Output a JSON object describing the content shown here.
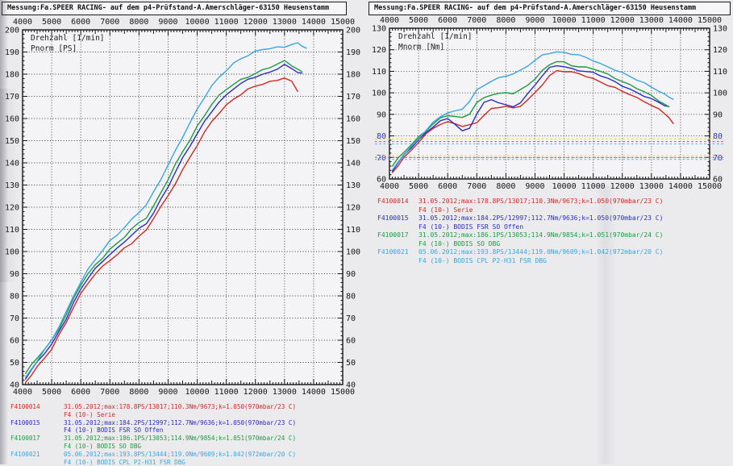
{
  "page": {
    "title": "Messung:Fa.SPEER RACING- auf dem p4-Prüfstand-A.Amerschläger-63150 Heusenstamm"
  },
  "colors": {
    "red": "#d22820",
    "blue": "#2a2cc8",
    "green": "#1e9a42",
    "cyan": "#38a6e0",
    "ref_yellow": "#e6de2e",
    "ref_magenta": "#e23cc8",
    "ref_cyan": "#46c4e8",
    "axis": "#151515",
    "grid": "#3c3c3c",
    "blue_label": "#2a35c8"
  },
  "legend": [
    {
      "id": "F4100014",
      "color": "red",
      "info": "31.05.2012;max:178.8PS/13017;110.3Nm/9673;k=1.050(970mbar/23 C)",
      "name": "F4 (10-) Serie"
    },
    {
      "id": "F4100015",
      "color": "blue",
      "info": "31.05.2012;max:184.2PS/12997;112.7Nm/9636;k=1.050(970mbar/23 C)",
      "name": "F4 (10-) BODIS FSR SO Offen"
    },
    {
      "id": "F4100017",
      "color": "green",
      "info": "31.05.2012;max:186.1PS/13053;114.9Nm/9854;k=1.051(970mbar/24 C)",
      "name": "F4 (10-) BODIS SO DBG"
    },
    {
      "id": "F4100021",
      "color": "cyan",
      "info": "05.06.2012;max:193.8PS/13444;119.0Nm/9609;k=1.042(972mbar/20 C)",
      "name": "F4 (10-) BODIS CPL P2-H31 FSR DBG"
    }
  ],
  "chart_data": [
    {
      "type": "line",
      "name": "power",
      "inplot_labels": [
        "Drehzahl [1/min]",
        "Pnorm [PS]"
      ],
      "xlabel": "Drehzahl [1/min]",
      "ylabel": "Pnorm [PS]",
      "xlim": [
        4000,
        15000
      ],
      "ylim": [
        40,
        200
      ],
      "x_major": 1000,
      "x_minor": 100,
      "y_major": 10,
      "y_minor": 2,
      "grid": "dotted",
      "x": [
        4100,
        4300,
        4500,
        4750,
        5000,
        5250,
        5500,
        5750,
        6000,
        6250,
        6500,
        6750,
        7000,
        7250,
        7500,
        7750,
        8000,
        8250,
        8500,
        8750,
        9000,
        9250,
        9500,
        9750,
        10000,
        10250,
        10500,
        10750,
        11000,
        11250,
        11500,
        11750,
        12000,
        12250,
        12500,
        12750,
        13000,
        13250,
        13450,
        13600,
        13750
      ],
      "series": [
        {
          "id": "F4100014",
          "color": "red",
          "max_label": "178.8PS/13017",
          "values": [
            41,
            44.5,
            48,
            52,
            56,
            62,
            68,
            75,
            81,
            86,
            90,
            93,
            96,
            98.5,
            101.5,
            104,
            107,
            109.5,
            115,
            120,
            125,
            131,
            137,
            142.5,
            148,
            153.5,
            158.5,
            162.5,
            166,
            169,
            171,
            173,
            174.5,
            175.5,
            176.5,
            177.5,
            178.6,
            176.5,
            172.3,
            null,
            null
          ]
        },
        {
          "id": "F4100015",
          "color": "blue",
          "max_label": "184.2PS/12997",
          "values": [
            43,
            46.5,
            50,
            54,
            58,
            64,
            70,
            77,
            83,
            88,
            92,
            95.5,
            99,
            101.5,
            104.5,
            107.5,
            110,
            112.5,
            117.5,
            123.5,
            129.5,
            136,
            142,
            147.5,
            153,
            158.5,
            163.5,
            167.5,
            170.5,
            173.5,
            175.5,
            177.5,
            179,
            180,
            181,
            182.5,
            184,
            182.3,
            181,
            180.3,
            null
          ]
        },
        {
          "id": "F4100017",
          "color": "green",
          "max_label": "186.1PS/13053",
          "values": [
            45,
            48.5,
            52,
            56,
            60,
            65.5,
            71.5,
            78.5,
            85,
            90,
            94,
            97.5,
            101,
            103.5,
            106.5,
            110,
            113,
            115.5,
            120.5,
            126.5,
            132.5,
            139,
            145,
            150.5,
            156.5,
            161.5,
            166.5,
            170,
            173,
            175.5,
            177.5,
            179,
            180.5,
            181.7,
            183,
            184.4,
            185.9,
            184.2,
            182.4,
            181,
            null
          ]
        },
        {
          "id": "F4100021",
          "color": "cyan",
          "max_label": "193.8PS/13444",
          "values": [
            43,
            47,
            51,
            55.5,
            60,
            66,
            72.5,
            80,
            86.5,
            92,
            96.5,
            100.5,
            104.5,
            107.5,
            111,
            114.5,
            118,
            121,
            126.5,
            132.5,
            139,
            145.5,
            152,
            158,
            164,
            169.5,
            174.5,
            178.5,
            182,
            185,
            187,
            188.5,
            190,
            191,
            191.8,
            192.2,
            192.4,
            193.6,
            193.7,
            192.6,
            191.8
          ]
        }
      ]
    },
    {
      "type": "line",
      "name": "torque",
      "inplot_labels": [
        "Drehzahl [1/min]",
        "Mnorm [Nm]"
      ],
      "xlabel": "Drehzahl [1/min]",
      "ylabel": "Mnorm [Nm]",
      "xlim": [
        4000,
        15000
      ],
      "ylim": [
        60,
        130
      ],
      "x_major": 1000,
      "x_minor": 100,
      "y_major": 10,
      "y_minor": 2,
      "grid": "dotted",
      "y_label_color_overrides": {
        "80": "blue_label",
        "70": "blue_label"
      },
      "reference_lines": [
        {
          "color": "ref_yellow",
          "value": 78.6
        },
        {
          "color": "ref_magenta",
          "value": 77.4
        },
        {
          "color": "ref_cyan",
          "value": 76.3
        },
        {
          "color": "ref_yellow",
          "value": 70.9
        },
        {
          "color": "ref_magenta",
          "value": 70.0
        },
        {
          "color": "ref_cyan",
          "value": 69.1
        }
      ],
      "x": [
        4100,
        4300,
        4500,
        4750,
        5000,
        5250,
        5500,
        5750,
        6000,
        6250,
        6500,
        6750,
        7000,
        7250,
        7500,
        7750,
        8000,
        8250,
        8500,
        8750,
        9000,
        9250,
        9500,
        9750,
        10000,
        10250,
        10500,
        10750,
        11000,
        11250,
        11500,
        11750,
        12000,
        12250,
        12500,
        12750,
        13000,
        13250,
        13450,
        13600,
        13750
      ],
      "series": [
        {
          "id": "F4100014",
          "color": "red",
          "max_label": "110.3Nm/9673",
          "values": [
            63,
            66.5,
            70,
            73.5,
            77,
            80.5,
            83.5,
            85.5,
            86.5,
            86,
            84.5,
            84.8,
            86.2,
            89.5,
            92.6,
            93.5,
            93.8,
            92.8,
            93.8,
            96.5,
            100,
            104,
            108,
            110.3,
            110,
            109.4,
            108.8,
            107.8,
            106.6,
            105.2,
            103.6,
            102.2,
            100.6,
            99.2,
            97.6,
            96.2,
            94.4,
            92.4,
            90.4,
            88.4,
            85.4
          ]
        },
        {
          "id": "F4100015",
          "color": "blue",
          "max_label": "112.7Nm/9636",
          "values": [
            64,
            67.5,
            71,
            74.5,
            78,
            81.5,
            84.5,
            87,
            88,
            85.5,
            82,
            83.5,
            90.5,
            95.5,
            97,
            95.5,
            94,
            93.5,
            95.5,
            99.5,
            104,
            108,
            111.5,
            112.6,
            112,
            111.2,
            110.6,
            110,
            109.4,
            108,
            106.5,
            105,
            103.4,
            101.8,
            100.2,
            98.6,
            97,
            95.4,
            94.2,
            93.5,
            null
          ]
        },
        {
          "id": "F4100017",
          "color": "green",
          "max_label": "114.9Nm/9854",
          "values": [
            66,
            69.5,
            72.5,
            76,
            79.5,
            82.5,
            85.5,
            88,
            89.5,
            89,
            88.5,
            90.5,
            95.5,
            97.5,
            99,
            99.5,
            100,
            100,
            101.5,
            103.5,
            106.5,
            110,
            113,
            114.8,
            114.3,
            112.8,
            112.2,
            111.6,
            111,
            110,
            108.6,
            107,
            105.4,
            103.6,
            102,
            100.4,
            98.6,
            96.6,
            94.8,
            93.4,
            null
          ]
        },
        {
          "id": "F4100021",
          "color": "cyan",
          "max_label": "119.0Nm/9609",
          "values": [
            64,
            68,
            71.5,
            75,
            78.5,
            82.5,
            86,
            89,
            91,
            91.5,
            92.5,
            96,
            101,
            103.5,
            105.5,
            107,
            108,
            108.8,
            110.2,
            112.5,
            115,
            117.5,
            118.7,
            119,
            118.6,
            118,
            117.4,
            116.4,
            115.2,
            113.6,
            112.1,
            110.6,
            109.1,
            107.6,
            106.1,
            104.6,
            102.9,
            100.9,
            99.1,
            98,
            97
          ]
        }
      ]
    }
  ]
}
